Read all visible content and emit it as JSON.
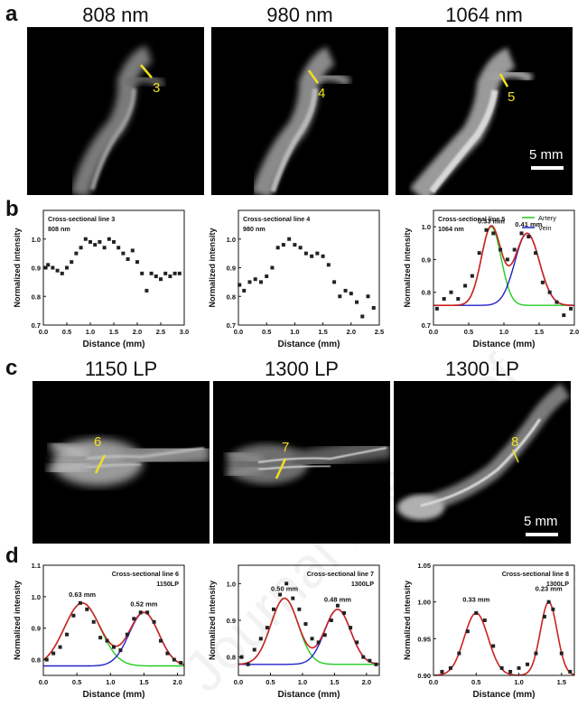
{
  "figure": {
    "panel_letters": [
      "a",
      "b",
      "c",
      "d"
    ],
    "row_a": {
      "titles": [
        "808 nm",
        "980 nm",
        "1064 nm"
      ],
      "line_labels": [
        "3",
        "4",
        "5"
      ],
      "scale_bar": "5 mm"
    },
    "row_c": {
      "titles": [
        "1150 LP",
        "1300 LP",
        "1300 LP"
      ],
      "line_labels": [
        "6",
        "7",
        "8"
      ],
      "scale_bar": "5 mm"
    },
    "watermark": "Journal Pre-proof",
    "colors": {
      "marker": "#f0e020",
      "fit": "#cc2222",
      "artery": "#22cc22",
      "vein": "#2222cc",
      "points": "#222222"
    }
  },
  "chart_data": [
    {
      "type": "scatter",
      "annotations": [
        "Cross-sectional line 3",
        "808 nm"
      ],
      "xlabel": "Distance (mm)",
      "ylabel": "Normalized intensity",
      "xlim": [
        0.0,
        3.0
      ],
      "ylim": [
        0.7,
        1.1
      ],
      "xticks": [
        "0.0",
        "0.5",
        "1.0",
        "1.5",
        "2.0",
        "2.5",
        "3.0"
      ],
      "yticks": [
        "0.7",
        "0.8",
        "0.9",
        "1.0"
      ],
      "x": [
        0.05,
        0.1,
        0.2,
        0.3,
        0.4,
        0.5,
        0.6,
        0.7,
        0.8,
        0.9,
        1.0,
        1.1,
        1.2,
        1.3,
        1.4,
        1.5,
        1.6,
        1.7,
        1.8,
        1.9,
        2.0,
        2.1,
        2.2,
        2.3,
        2.4,
        2.5,
        2.6,
        2.7,
        2.8,
        2.9
      ],
      "y": [
        0.9,
        0.91,
        0.9,
        0.89,
        0.88,
        0.9,
        0.92,
        0.95,
        0.97,
        1.0,
        0.99,
        0.98,
        0.99,
        0.97,
        1.0,
        0.99,
        0.97,
        0.95,
        0.93,
        0.96,
        0.92,
        0.88,
        0.82,
        0.88,
        0.87,
        0.86,
        0.88,
        0.87,
        0.88,
        0.88
      ],
      "series": [],
      "labels": []
    },
    {
      "type": "scatter",
      "annotations": [
        "Cross-sectional line 4",
        "980 nm"
      ],
      "xlabel": "Distance (mm)",
      "ylabel": "Normalized intensity",
      "xlim": [
        0.0,
        2.5
      ],
      "ylim": [
        0.7,
        1.1
      ],
      "xticks": [
        "0.0",
        "0.5",
        "1.0",
        "1.5",
        "2.0",
        "2.5"
      ],
      "yticks": [
        "0.7",
        "0.8",
        "0.9",
        "1.0"
      ],
      "x": [
        0.02,
        0.1,
        0.2,
        0.3,
        0.4,
        0.5,
        0.6,
        0.7,
        0.8,
        0.9,
        1.0,
        1.1,
        1.2,
        1.3,
        1.4,
        1.5,
        1.6,
        1.7,
        1.8,
        1.9,
        2.0,
        2.1,
        2.2,
        2.3,
        2.4
      ],
      "y": [
        0.84,
        0.82,
        0.85,
        0.86,
        0.85,
        0.87,
        0.9,
        0.97,
        0.98,
        1.0,
        0.98,
        0.97,
        0.95,
        0.94,
        0.95,
        0.94,
        0.91,
        0.85,
        0.8,
        0.82,
        0.81,
        0.78,
        0.73,
        0.8,
        0.76
      ],
      "series": [],
      "labels": []
    },
    {
      "type": "line",
      "annotations": [
        "Cross-sectional line 5",
        "1064 nm"
      ],
      "legend": [
        "Artery",
        "Vein"
      ],
      "xlabel": "Distance (mm)",
      "ylabel": "Normalized intensity",
      "xlim": [
        0.0,
        2.0
      ],
      "ylim": [
        0.7,
        1.05
      ],
      "xticks": [
        "0.0",
        "0.5",
        "1.0",
        "1.5",
        "2.0"
      ],
      "yticks": [
        "0.7",
        "0.8",
        "0.9",
        "1.0"
      ],
      "x": [
        0.05,
        0.15,
        0.25,
        0.35,
        0.45,
        0.55,
        0.65,
        0.75,
        0.85,
        0.95,
        1.05,
        1.15,
        1.25,
        1.35,
        1.45,
        1.55,
        1.65,
        1.75,
        1.85,
        1.95
      ],
      "y": [
        0.75,
        0.78,
        0.8,
        0.78,
        0.82,
        0.85,
        0.92,
        0.99,
        0.98,
        0.93,
        0.9,
        0.93,
        0.98,
        0.97,
        0.92,
        0.83,
        0.8,
        0.77,
        0.73,
        0.75
      ],
      "series": [
        {
          "name": "Artery",
          "color": "#22cc22",
          "center": 0.82,
          "width": 0.33,
          "amp": 0.24,
          "base": 0.76
        },
        {
          "name": "Vein",
          "color": "#2222cc",
          "center": 1.33,
          "width": 0.41,
          "amp": 0.22,
          "base": 0.76
        }
      ],
      "fit_color": "#cc2222",
      "labels": [
        {
          "text": "0.33 mm",
          "x": 0.82,
          "y": 1.01
        },
        {
          "text": "0.41 mm",
          "x": 1.35,
          "y": 1.0
        }
      ]
    },
    {
      "type": "line",
      "annotations": [
        "Cross-sectional line 6",
        "1150LP"
      ],
      "xlabel": "Distance (mm)",
      "ylabel": "Normalized intensity",
      "xlim": [
        0.0,
        2.1
      ],
      "ylim": [
        0.75,
        1.1
      ],
      "xticks": [
        "0.0",
        "0.5",
        "1.0",
        "1.5",
        "2.0"
      ],
      "yticks": [
        "0.8",
        "0.9",
        "1.0",
        "1.1"
      ],
      "x": [
        0.05,
        0.15,
        0.25,
        0.35,
        0.45,
        0.55,
        0.65,
        0.75,
        0.85,
        0.95,
        1.05,
        1.15,
        1.25,
        1.35,
        1.45,
        1.55,
        1.65,
        1.75,
        1.85,
        1.95,
        2.05
      ],
      "y": [
        0.8,
        0.82,
        0.84,
        0.88,
        0.94,
        0.98,
        0.96,
        0.92,
        0.87,
        0.86,
        0.84,
        0.83,
        0.88,
        0.93,
        0.95,
        0.95,
        0.92,
        0.86,
        0.82,
        0.8,
        0.79
      ],
      "series": [
        {
          "name": "",
          "color": "#22cc22",
          "center": 0.58,
          "width": 0.63,
          "amp": 0.2,
          "base": 0.78
        },
        {
          "name": "",
          "color": "#2222cc",
          "center": 1.5,
          "width": 0.52,
          "amp": 0.17,
          "base": 0.78
        }
      ],
      "fit_color": "#cc2222",
      "labels": [
        {
          "text": "0.63 mm",
          "x": 0.58,
          "y": 1.0
        },
        {
          "text": "0.52 mm",
          "x": 1.5,
          "y": 0.97
        }
      ]
    },
    {
      "type": "line",
      "annotations": [
        "Cross-sectional line 7",
        "1300LP"
      ],
      "xlabel": "Distance (mm)",
      "ylabel": "Normalized intensity",
      "xlim": [
        0.0,
        2.2
      ],
      "ylim": [
        0.75,
        1.05
      ],
      "xticks": [
        "0.0",
        "0.5",
        "1.0",
        "1.5",
        "2.0"
      ],
      "yticks": [
        "0.8",
        "0.9",
        "1.0"
      ],
      "x": [
        0.05,
        0.15,
        0.25,
        0.35,
        0.45,
        0.55,
        0.65,
        0.75,
        0.85,
        0.95,
        1.05,
        1.15,
        1.25,
        1.35,
        1.45,
        1.55,
        1.65,
        1.75,
        1.85,
        1.95,
        2.05,
        2.15
      ],
      "y": [
        0.8,
        0.78,
        0.82,
        0.85,
        0.88,
        0.93,
        0.97,
        1.0,
        0.96,
        0.93,
        0.89,
        0.85,
        0.84,
        0.86,
        0.9,
        0.94,
        0.92,
        0.88,
        0.84,
        0.8,
        0.79,
        0.78
      ],
      "series": [
        {
          "name": "",
          "color": "#22cc22",
          "center": 0.72,
          "width": 0.5,
          "amp": 0.18,
          "base": 0.78
        },
        {
          "name": "",
          "color": "#2222cc",
          "center": 1.55,
          "width": 0.48,
          "amp": 0.15,
          "base": 0.78
        }
      ],
      "fit_color": "#cc2222",
      "labels": [
        {
          "text": "0.50 mm",
          "x": 0.72,
          "y": 0.98
        },
        {
          "text": "0.48 mm",
          "x": 1.55,
          "y": 0.95
        }
      ]
    },
    {
      "type": "line",
      "annotations": [
        "Cross-sectional line 8",
        "1300LP"
      ],
      "xlabel": "Distance (mm)",
      "ylabel": "Normalized intensity",
      "xlim": [
        0.0,
        1.65
      ],
      "ylim": [
        0.9,
        1.05
      ],
      "xticks": [
        "0.0",
        "0.5",
        "1.0",
        "1.5"
      ],
      "yticks": [
        "0.90",
        "0.95",
        "1.00",
        "1.05"
      ],
      "x": [
        0.1,
        0.2,
        0.3,
        0.4,
        0.5,
        0.6,
        0.7,
        0.8,
        0.9,
        1.0,
        1.1,
        1.2,
        1.3,
        1.35,
        1.4,
        1.5,
        1.6
      ],
      "y": [
        0.905,
        0.91,
        0.93,
        0.96,
        0.985,
        0.975,
        0.94,
        0.91,
        0.905,
        0.91,
        0.915,
        0.93,
        0.98,
        1.0,
        0.99,
        0.93,
        0.905
      ],
      "series": [],
      "fits": [
        {
          "center": 0.5,
          "width": 0.33,
          "amp": 0.085,
          "base": 0.9
        },
        {
          "center": 1.35,
          "width": 0.23,
          "amp": 0.1,
          "base": 0.9
        }
      ],
      "fit_color": "#cc2222",
      "labels": [
        {
          "text": "0.33 mm",
          "x": 0.5,
          "y": 1.0
        },
        {
          "text": "0.23 mm",
          "x": 1.35,
          "y": 1.015
        }
      ]
    }
  ]
}
